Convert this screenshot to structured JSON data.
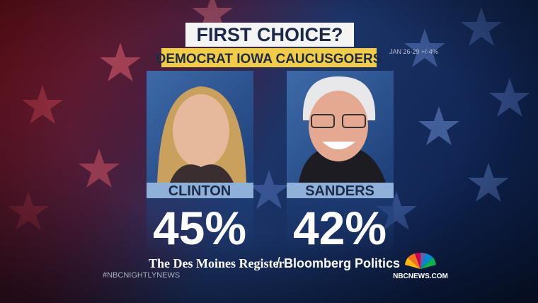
{
  "header": {
    "title": "FIRST CHOICE?",
    "subtitle": "DEMOCRAT IOWA CAUCUSGOERS",
    "note": "JAN 26-29 +/-4%"
  },
  "candidates": [
    {
      "name": "CLINTON",
      "share": "45%"
    },
    {
      "name": "SANDERS",
      "share": "42%"
    }
  ],
  "sources": {
    "first": "The Des Moines Register",
    "separator": "/",
    "second": "Bloomberg Politics"
  },
  "footer": {
    "hashtag": "#NBCNIGHTLYNEWS",
    "network": "NBCNEWS.COM"
  }
}
